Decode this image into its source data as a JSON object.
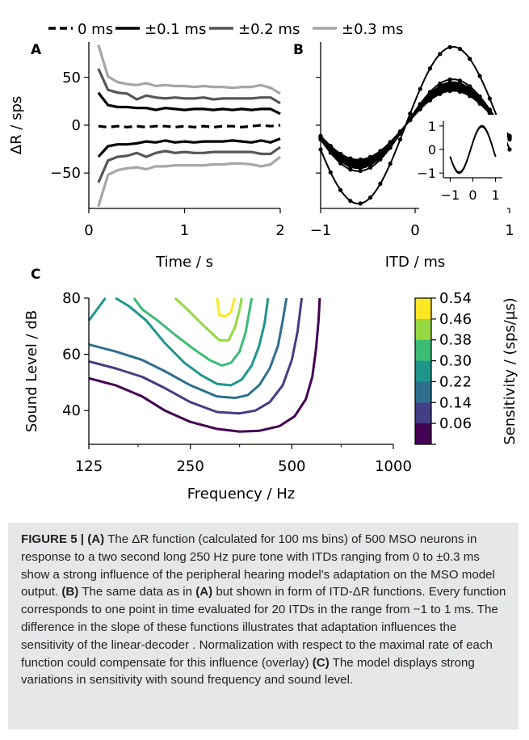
{
  "chart_data": [
    {
      "panel": "A",
      "type": "line",
      "xlabel": "Time / s",
      "ylabel": "ΔR / sps",
      "xlim": [
        0,
        2
      ],
      "ylim": [
        -87,
        87
      ],
      "xticks": [
        "0",
        "1",
        "2"
      ],
      "yticks": [
        "50",
        "0",
        "−50"
      ],
      "legend_placement": "top",
      "x": [
        0.1,
        0.2,
        0.3,
        0.4,
        0.5,
        0.6,
        0.7,
        0.8,
        0.9,
        1.0,
        1.1,
        1.2,
        1.3,
        1.4,
        1.5,
        1.6,
        1.7,
        1.8,
        1.9,
        2.0
      ],
      "series": [
        {
          "name": "0 ms",
          "style": "dashed",
          "color": "#000000",
          "values": [
            -1,
            -2,
            -1,
            -2,
            -1,
            -2,
            -1,
            -1,
            -2,
            -1,
            -2,
            -1,
            -2,
            -1,
            -1,
            -2,
            -1,
            0,
            -1,
            0
          ]
        },
        {
          "name": "±0.1 ms",
          "style": "solid",
          "color": "#000000",
          "values": [
            34,
            21,
            19,
            19,
            18,
            18,
            16,
            18,
            17,
            16,
            17,
            17,
            16,
            17,
            16,
            17,
            16,
            17,
            17,
            12
          ]
        },
        {
          "name": "±0.1 ms",
          "style": "solid",
          "color": "#000000",
          "values": [
            -33,
            -22,
            -20,
            -20,
            -19,
            -17,
            -18,
            -16,
            -18,
            -17,
            -18,
            -17,
            -17,
            -17,
            -16,
            -17,
            -18,
            -16,
            -18,
            -14
          ]
        },
        {
          "name": "±0.2 ms",
          "style": "solid",
          "color": "#575757",
          "values": [
            59,
            37,
            34,
            33,
            27,
            31,
            29,
            28,
            29,
            28,
            28,
            29,
            27,
            28,
            28,
            28,
            28,
            29,
            29,
            23
          ]
        },
        {
          "name": "±0.2 ms",
          "style": "solid",
          "color": "#575757",
          "values": [
            -60,
            -37,
            -33,
            -32,
            -29,
            -33,
            -29,
            -27,
            -29,
            -28,
            -29,
            -29,
            -28,
            -28,
            -28,
            -28,
            -28,
            -30,
            -30,
            -23
          ]
        },
        {
          "name": "±0.3 ms",
          "style": "solid",
          "color": "#a6a6a6",
          "values": [
            84,
            51,
            45,
            43,
            42,
            44,
            41,
            42,
            41,
            41,
            40,
            41,
            40,
            40,
            39,
            40,
            40,
            42,
            39,
            33
          ]
        },
        {
          "name": "±0.3 ms",
          "style": "solid",
          "color": "#a6a6a6",
          "values": [
            -85,
            -52,
            -47,
            -45,
            -44,
            -46,
            -43,
            -43,
            -42,
            -42,
            -42,
            -42,
            -41,
            -41,
            -40,
            -40,
            -41,
            -43,
            -41,
            -33
          ]
        }
      ]
    },
    {
      "panel": "B",
      "type": "line",
      "xlabel": "ITD / ms",
      "ylabel": "",
      "xlim": [
        -1,
        1
      ],
      "ylim": [
        -87,
        87
      ],
      "xticks": [
        "−1",
        "0",
        "1"
      ],
      "itd_points": 20,
      "amplitudes": [
        82,
        48,
        45,
        44,
        43,
        42,
        41,
        40,
        39,
        38,
        37,
        36
      ],
      "inset": {
        "xticks": [
          "−1",
          "0",
          "1"
        ],
        "yticks": [
          "1",
          "0",
          "−1"
        ],
        "xlim": [
          -1.3,
          1.3
        ],
        "ylim": [
          -1.2,
          1.2
        ]
      }
    },
    {
      "panel": "C",
      "type": "contour",
      "xlabel": "Frequency / Hz",
      "ylabel": "Sound Level / dB",
      "xscale": "log",
      "xticks": [
        "125",
        "250",
        "500",
        "1000"
      ],
      "yticks": [
        "80",
        "60",
        "40"
      ],
      "xlim": [
        125,
        1000
      ],
      "ylim": [
        28,
        80
      ],
      "colorbar_label": "Sensitivity / (sps/µs)",
      "levels": [
        {
          "label": "0.54",
          "color": "#fde725"
        },
        {
          "label": "0.46",
          "color": "#95d840"
        },
        {
          "label": "0.38",
          "color": "#3cbb75"
        },
        {
          "label": "0.30",
          "color": "#1f968b"
        },
        {
          "label": "0.22",
          "color": "#2d708e"
        },
        {
          "label": "0.14",
          "color": "#433e85"
        },
        {
          "label": "0.06",
          "color": "#440154"
        }
      ],
      "contours": [
        {
          "level": "0.06",
          "points": [
            [
              125,
              51.5
            ],
            [
              150,
              49
            ],
            [
              180,
              45
            ],
            [
              210,
              40
            ],
            [
              250,
              36
            ],
            [
              300,
              33.5
            ],
            [
              350,
              32.5
            ],
            [
              400,
              32.8
            ],
            [
              460,
              34.5
            ],
            [
              510,
              38
            ],
            [
              550,
              44
            ],
            [
              575,
              52
            ],
            [
              590,
              62
            ],
            [
              600,
              72
            ],
            [
              605,
              80
            ]
          ]
        },
        {
          "level": "0.14",
          "points": [
            [
              125,
              57.5
            ],
            [
              150,
              55
            ],
            [
              180,
              52
            ],
            [
              210,
              48
            ],
            [
              250,
              43
            ],
            [
              300,
              39.5
            ],
            [
              350,
              39
            ],
            [
              390,
              40
            ],
            [
              430,
              43
            ],
            [
              470,
              49
            ],
            [
              500,
              58
            ],
            [
              520,
              68
            ],
            [
              535,
              80
            ]
          ]
        },
        {
          "level": "0.22",
          "points": [
            [
              125,
              63.5
            ],
            [
              150,
              61
            ],
            [
              180,
              58
            ],
            [
              210,
              54
            ],
            [
              250,
              49
            ],
            [
              300,
              45
            ],
            [
              340,
              44.5
            ],
            [
              370,
              45.5
            ],
            [
              400,
              49
            ],
            [
              430,
              55
            ],
            [
              455,
              63
            ],
            [
              470,
              72
            ],
            [
              482,
              80
            ]
          ]
        },
        {
          "level": "0.30",
          "points": [
            [
              125,
              72
            ],
            [
              140,
              80
            ]
          ]
        },
        {
          "level": "0.30",
          "points": [
            [
              150,
              80
            ],
            [
              165,
              77
            ],
            [
              185,
              72
            ],
            [
              210,
              64
            ],
            [
              240,
              57
            ],
            [
              270,
              52.5
            ],
            [
              300,
              49.5
            ],
            [
              330,
              49
            ],
            [
              355,
              51
            ],
            [
              380,
              56
            ],
            [
              400,
              63
            ],
            [
              415,
              71
            ],
            [
              425,
              80
            ]
          ]
        },
        {
          "level": "0.38",
          "points": [
            [
              170,
              80
            ],
            [
              180,
              76
            ],
            [
              200,
              72
            ],
            [
              225,
              67
            ],
            [
              255,
              62
            ],
            [
              285,
              58
            ],
            [
              310,
              56
            ],
            [
              330,
              57
            ],
            [
              350,
              61
            ],
            [
              365,
              68
            ],
            [
              375,
              76
            ],
            [
              380,
              80
            ]
          ]
        },
        {
          "level": "0.46",
          "points": [
            [
              225,
              80
            ],
            [
              245,
              76
            ],
            [
              275,
              70
            ],
            [
              305,
              65
            ],
            [
              325,
              65
            ],
            [
              340,
              70
            ],
            [
              350,
              76
            ],
            [
              355,
              80
            ]
          ]
        },
        {
          "level": "0.54",
          "points": [
            [
              300,
              80
            ],
            [
              305,
              74
            ],
            [
              318,
              73.5
            ],
            [
              330,
              75
            ],
            [
              338,
              80
            ]
          ]
        }
      ]
    }
  ],
  "panel_labels": [
    "A",
    "B",
    "C"
  ],
  "caption": {
    "label": "FIGURE 5 |",
    "a": "(A)",
    "a_text": " The ΔR function (calculated for 100 ms bins) of 500 MSO neurons in response to a two second long 250 Hz pure tone with ITDs ranging from 0 to ±0.3 ms show a strong influence of the peripheral hearing model's adaptation on the MSO model output. ",
    "b": "(B)",
    "b_text1": " The same data as in ",
    "b_ref": "(A)",
    "b_text2": " but shown in form of ITD-ΔR functions. Every function corresponds to one point in time evaluated for 20 ITDs in the range from −1 to 1 ms. The difference in the slope of these functions illustrates that adaptation influences the sensitivity of the linear-decoder . Normalization with respect to the maximal rate of each function could compensate for this influence (overlay) ",
    "c": "(C)",
    "c_text": " The model displays strong variations in sensitivity with sound frequency and sound level."
  }
}
